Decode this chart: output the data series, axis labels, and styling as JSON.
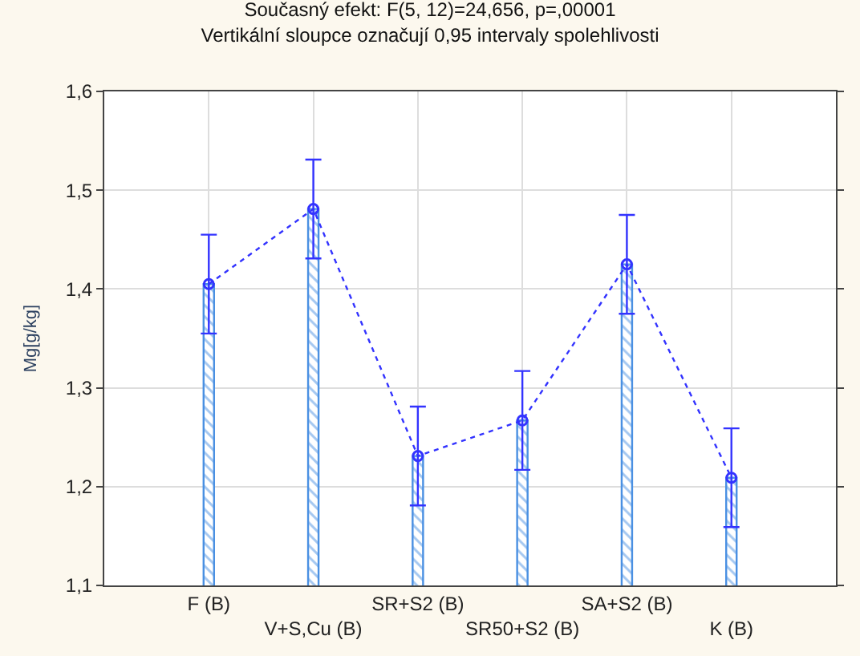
{
  "chart_data": {
    "type": "bar",
    "title": "Současný efekt: F(5, 12)=24,656, p=,00001",
    "subtitle": "Vertikální sloupce označují 0,95 intervaly spolehlivosti",
    "ylabel": "Mg[g/kg]",
    "categories": [
      "F (B)",
      "V+S,Cu (B)",
      "SR+S2 (B)",
      "SR50+S2 (B)",
      "SA+S2 (B)",
      "K (B)"
    ],
    "series": [
      {
        "color": "#4a90e2",
        "values": [
          1.405,
          1.481,
          1.231,
          1.267,
          1.425,
          1.209
        ]
      },
      {
        "type": "line",
        "color": "#3333ff",
        "values": [
          1.405,
          1.481,
          1.231,
          1.267,
          1.425,
          1.209
        ],
        "errors": [
          0.05,
          0.05,
          0.05,
          0.05,
          0.05,
          0.05
        ],
        "marker": "circle",
        "line_style": "dotted"
      }
    ],
    "ylim": [
      1.1,
      1.6
    ],
    "yticks": [
      {
        "value": 1.1,
        "label": "1,1"
      },
      {
        "value": 1.2,
        "label": "1,2"
      },
      {
        "value": 1.3,
        "label": "1,3"
      },
      {
        "value": 1.4,
        "label": "1,4"
      },
      {
        "value": 1.5,
        "label": "1,5"
      },
      {
        "value": 1.6,
        "label": "1,6"
      }
    ],
    "grid": true
  }
}
